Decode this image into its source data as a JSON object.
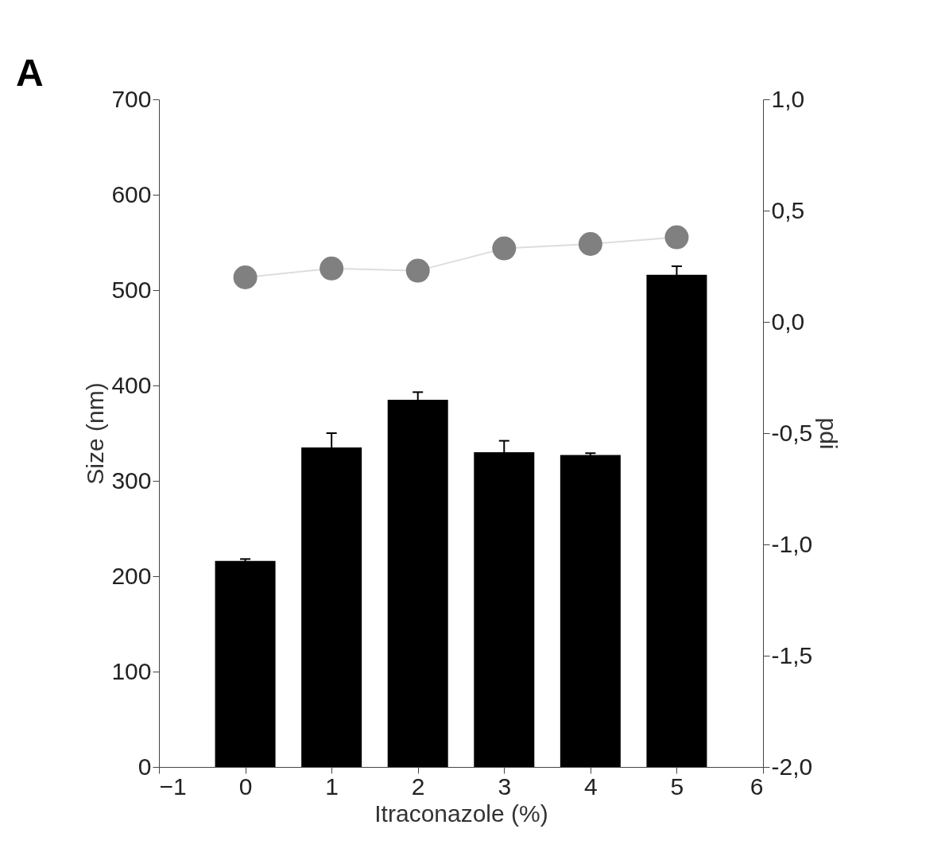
{
  "chart_data": {
    "type": "bar",
    "xlabel": "Itraconazole (%)",
    "ylabel": "Size (nm)",
    "y2label": "pdi",
    "annotations": [
      "A"
    ],
    "x": [
      0,
      1,
      2,
      3,
      4,
      5
    ],
    "series": [
      {
        "color": "#000000",
        "values": [
          216,
          335,
          385,
          330,
          327,
          516
        ],
        "errors": [
          2,
          15,
          8,
          12,
          2,
          9
        ]
      },
      {
        "type": "line",
        "axis": "y2",
        "color": "#808080",
        "marker": "circle",
        "values": [
          0.2,
          0.24,
          0.23,
          0.33,
          0.35,
          0.38
        ]
      }
    ],
    "xlim": [
      -1,
      6
    ],
    "xticks": [
      -1,
      0,
      1,
      2,
      3,
      4,
      5,
      6
    ],
    "ylim": [
      0,
      700
    ],
    "yticks": [
      0,
      100,
      200,
      300,
      400,
      500,
      600,
      700
    ],
    "y2lim": [
      -2,
      1
    ],
    "y2ticks": [
      {
        "value": -2,
        "label": "-2,0"
      },
      {
        "value": -1.5,
        "label": "-1,5"
      },
      {
        "value": -1,
        "label": "-1,0"
      },
      {
        "value": -0.5,
        "label": "-0,5"
      },
      {
        "value": 0,
        "label": "0,0"
      },
      {
        "value": 0.5,
        "label": "0,5"
      },
      {
        "value": 1,
        "label": "1,0"
      }
    ],
    "grid": false
  }
}
